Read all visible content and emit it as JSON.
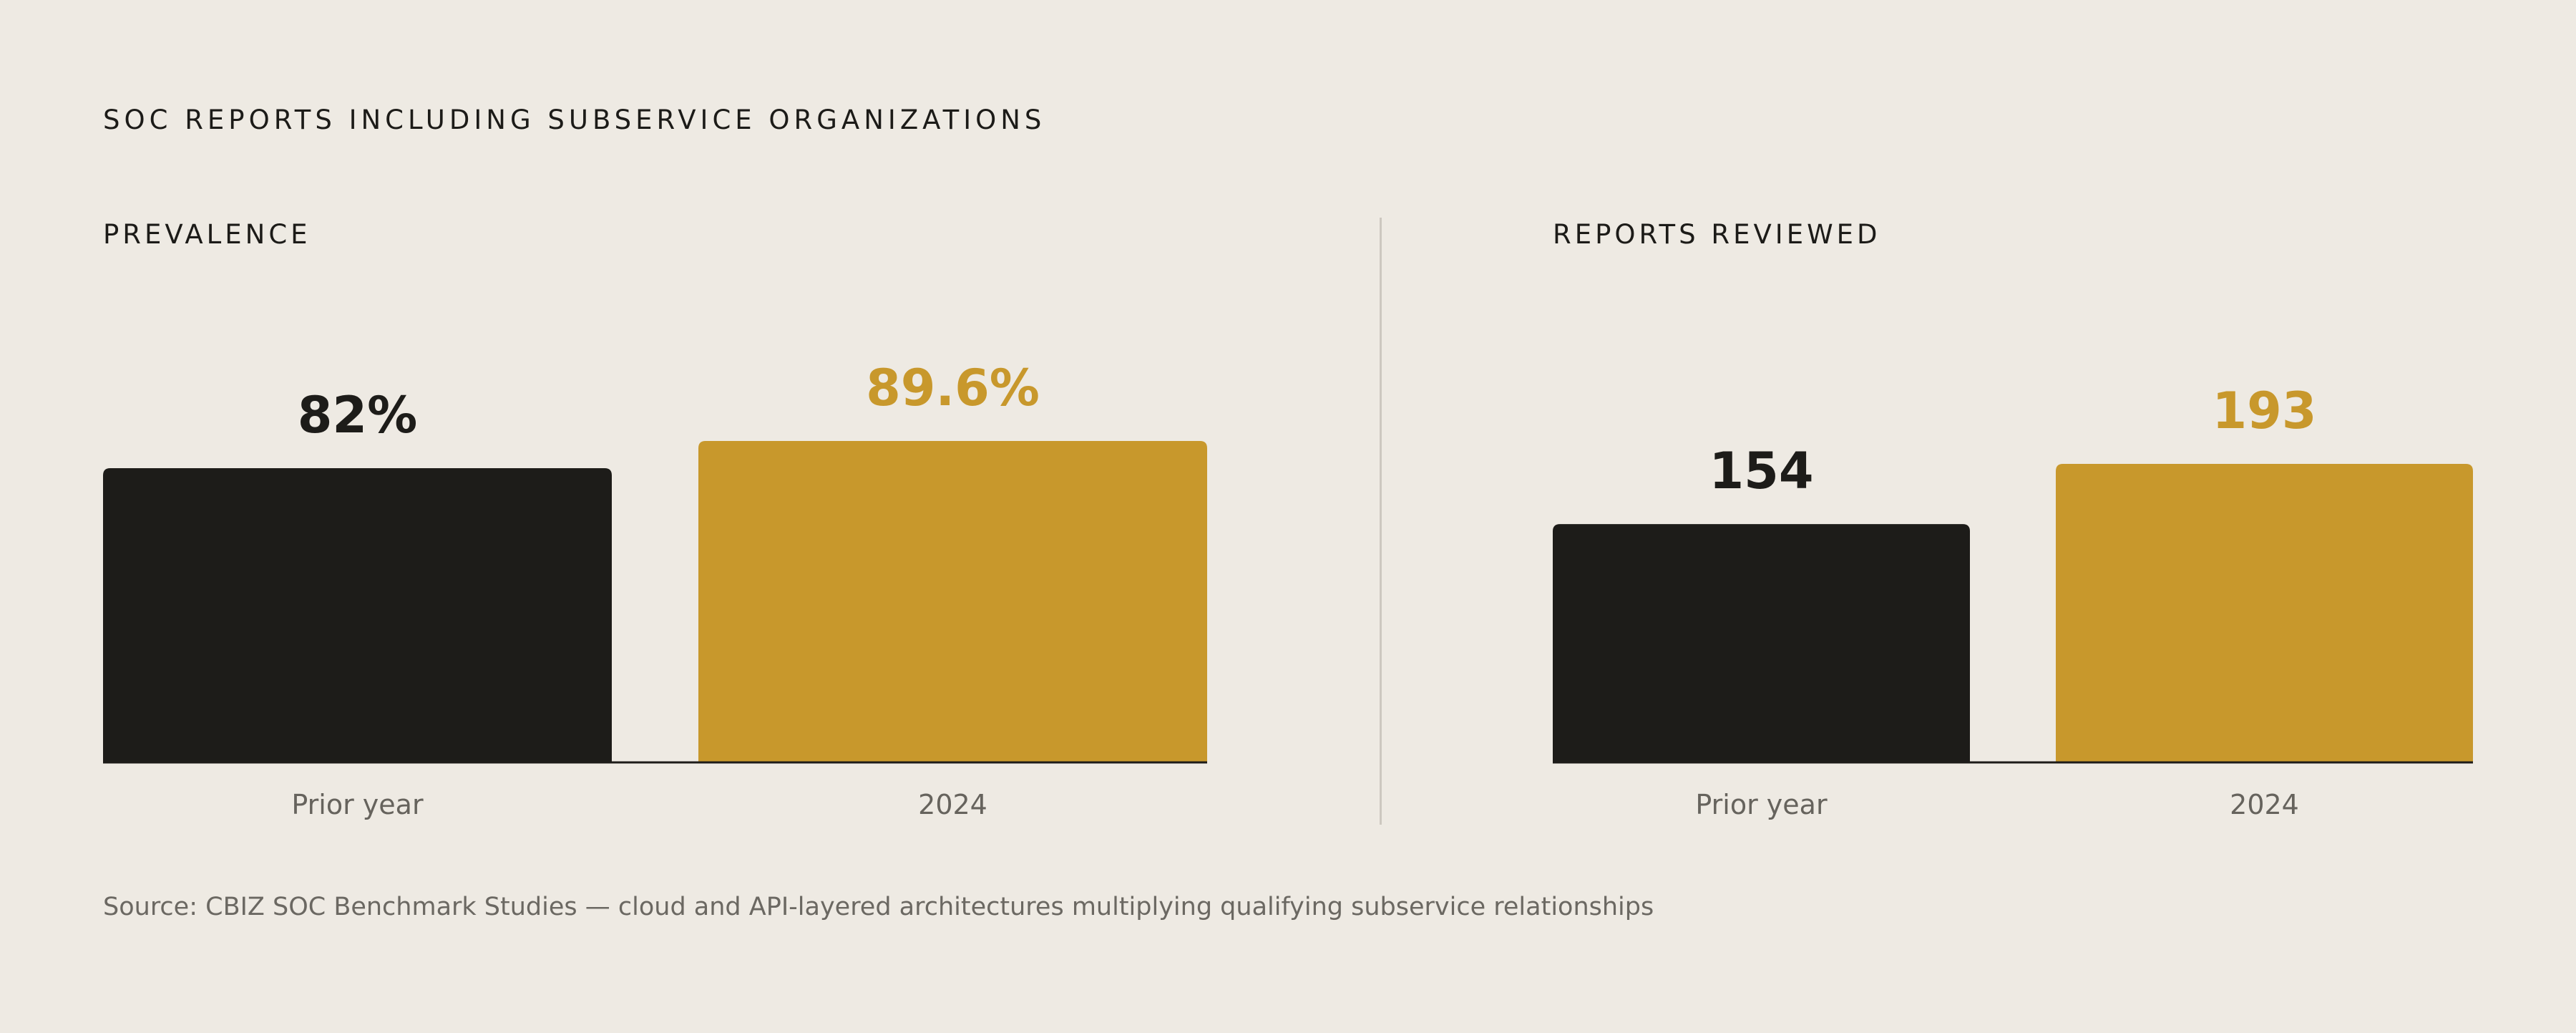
{
  "heading": "SOC REPORTS INCLUDING SUBSERVICE ORGANIZATIONS",
  "source": "Source: CBIZ SOC Benchmark Studies — cloud and API-layered architectures multiplying qualifying subservice relationships",
  "colors": {
    "dark": "#1d1c19",
    "accent": "#c8982c",
    "label": "#66635d",
    "background": "#eeeae3"
  },
  "chart_data": [
    {
      "type": "bar",
      "title": "PREVALENCE",
      "categories": [
        "Prior year",
        "2024"
      ],
      "values": [
        82,
        89.6
      ],
      "value_labels": [
        "82%",
        "89.6%"
      ],
      "bar_colors": [
        "#1d1c19",
        "#c8982c"
      ],
      "ylim": [
        0,
        100
      ]
    },
    {
      "type": "bar",
      "title": "REPORTS REVIEWED",
      "categories": [
        "Prior year",
        "2024"
      ],
      "values": [
        154,
        193
      ],
      "value_labels": [
        "154",
        "193"
      ],
      "bar_colors": [
        "#1d1c19",
        "#c8982c"
      ],
      "ylim": [
        0,
        232
      ]
    }
  ]
}
